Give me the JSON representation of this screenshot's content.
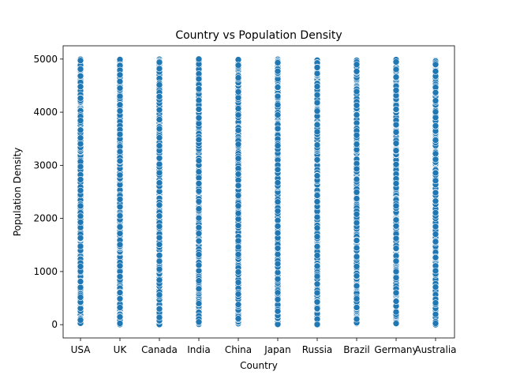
{
  "chart_data": {
    "type": "scatter",
    "title": "Country vs Population Density",
    "xlabel": "Country",
    "ylabel": "Population Density",
    "categories": [
      "USA",
      "UK",
      "Canada",
      "India",
      "China",
      "Japan",
      "Russia",
      "Brazil",
      "Germany",
      "Australia"
    ],
    "yticks": [
      0,
      1000,
      2000,
      3000,
      4000,
      5000
    ],
    "ylim": [
      -250,
      5250
    ],
    "grid": false,
    "legend": "none",
    "point_color": "#1f77b4",
    "series": [
      {
        "points_per_category": 500,
        "y_min": 0,
        "y_max": 5000,
        "distribution": "uniform"
      }
    ]
  }
}
